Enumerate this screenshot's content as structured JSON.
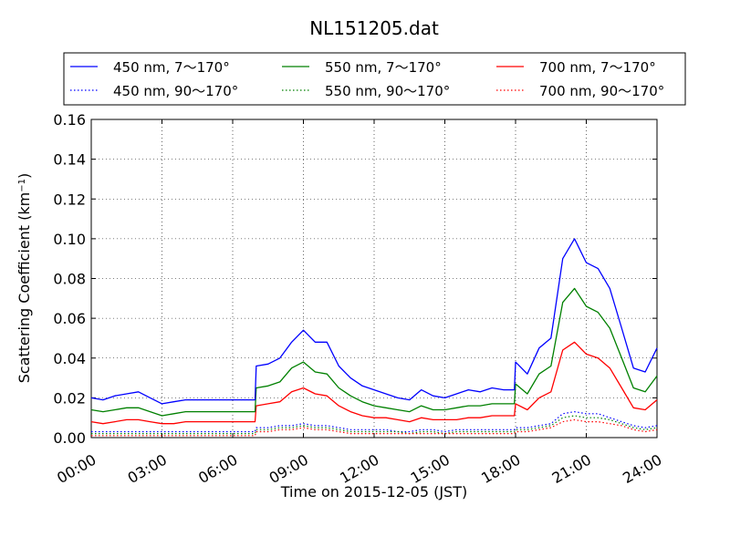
{
  "chart_data": {
    "type": "line",
    "title": "NL151205.dat",
    "xlabel": "Time on 2015-12-05 (JST)",
    "ylabel": "Scattering Coefficient (km",
    "ylabel_sup": "−1",
    "ylabel_tail": ")",
    "xlim": [
      0,
      24
    ],
    "ylim": [
      0,
      0.16
    ],
    "x_ticks": [
      0,
      3,
      6,
      9,
      12,
      15,
      18,
      21,
      24
    ],
    "x_tick_labels": [
      "00:00",
      "03:00",
      "06:00",
      "09:00",
      "12:00",
      "15:00",
      "18:00",
      "21:00",
      "24:00"
    ],
    "y_ticks": [
      0,
      0.02,
      0.04,
      0.06,
      0.08,
      0.1,
      0.12,
      0.14,
      0.16
    ],
    "y_tick_labels": [
      "0.00",
      "0.02",
      "0.04",
      "0.06",
      "0.08",
      "0.10",
      "0.12",
      "0.14",
      "0.16"
    ],
    "grid": true,
    "legend_placement": "top, above plot",
    "x": [
      0,
      0.5,
      1,
      1.5,
      2,
      2.5,
      3,
      3.5,
      4,
      4.5,
      5,
      5.5,
      6,
      6.5,
      6.95,
      7.0,
      7.5,
      8,
      8.5,
      9,
      9.5,
      10,
      10.5,
      11,
      11.5,
      12,
      12.5,
      13,
      13.5,
      14,
      14.5,
      15,
      15.5,
      16,
      16.5,
      17,
      17.5,
      17.95,
      18.0,
      18.5,
      19,
      19.5,
      20,
      20.5,
      21,
      21.5,
      22,
      22.5,
      23,
      23.5,
      24
    ],
    "series": [
      {
        "name": "450 nm, 7～170°",
        "color": "#0000ff",
        "style": "solid",
        "values": [
          0.02,
          0.019,
          0.021,
          0.022,
          0.023,
          0.02,
          0.017,
          0.018,
          0.019,
          0.019,
          0.019,
          0.019,
          0.019,
          0.019,
          0.019,
          0.036,
          0.037,
          0.04,
          0.048,
          0.054,
          0.048,
          0.048,
          0.036,
          0.03,
          0.026,
          0.024,
          0.022,
          0.02,
          0.019,
          0.024,
          0.021,
          0.02,
          0.022,
          0.024,
          0.023,
          0.025,
          0.024,
          0.024,
          0.038,
          0.032,
          0.045,
          0.05,
          0.09,
          0.1,
          0.088,
          0.085,
          0.075,
          0.055,
          0.035,
          0.033,
          0.045
        ]
      },
      {
        "name": "450 nm, 90～170°",
        "color": "#0000ff",
        "style": "dotted",
        "values": [
          0.003,
          0.003,
          0.003,
          0.003,
          0.003,
          0.003,
          0.003,
          0.003,
          0.003,
          0.003,
          0.003,
          0.003,
          0.003,
          0.003,
          0.003,
          0.005,
          0.005,
          0.006,
          0.006,
          0.007,
          0.006,
          0.006,
          0.005,
          0.004,
          0.004,
          0.004,
          0.004,
          0.003,
          0.003,
          0.004,
          0.004,
          0.003,
          0.004,
          0.004,
          0.004,
          0.004,
          0.004,
          0.004,
          0.005,
          0.005,
          0.006,
          0.007,
          0.012,
          0.013,
          0.012,
          0.012,
          0.01,
          0.008,
          0.006,
          0.005,
          0.006
        ]
      },
      {
        "name": "550 nm, 7～170°",
        "color": "#008000",
        "style": "solid",
        "values": [
          0.014,
          0.013,
          0.014,
          0.015,
          0.015,
          0.013,
          0.011,
          0.012,
          0.013,
          0.013,
          0.013,
          0.013,
          0.013,
          0.013,
          0.013,
          0.025,
          0.026,
          0.028,
          0.035,
          0.038,
          0.033,
          0.032,
          0.025,
          0.021,
          0.018,
          0.016,
          0.015,
          0.014,
          0.013,
          0.016,
          0.014,
          0.014,
          0.015,
          0.016,
          0.016,
          0.017,
          0.017,
          0.017,
          0.027,
          0.022,
          0.032,
          0.036,
          0.068,
          0.075,
          0.066,
          0.063,
          0.055,
          0.04,
          0.025,
          0.023,
          0.031
        ]
      },
      {
        "name": "550 nm, 90～170°",
        "color": "#008000",
        "style": "dotted",
        "values": [
          0.002,
          0.002,
          0.002,
          0.002,
          0.002,
          0.002,
          0.002,
          0.002,
          0.002,
          0.002,
          0.002,
          0.002,
          0.002,
          0.002,
          0.002,
          0.004,
          0.004,
          0.005,
          0.005,
          0.006,
          0.005,
          0.005,
          0.004,
          0.003,
          0.003,
          0.003,
          0.003,
          0.003,
          0.002,
          0.003,
          0.003,
          0.002,
          0.003,
          0.003,
          0.003,
          0.003,
          0.003,
          0.003,
          0.004,
          0.004,
          0.005,
          0.006,
          0.01,
          0.011,
          0.01,
          0.01,
          0.009,
          0.007,
          0.005,
          0.004,
          0.005
        ]
      },
      {
        "name": "700 nm, 7～170°",
        "color": "#ff0000",
        "style": "solid",
        "values": [
          0.008,
          0.007,
          0.008,
          0.009,
          0.009,
          0.008,
          0.007,
          0.007,
          0.008,
          0.008,
          0.008,
          0.008,
          0.008,
          0.008,
          0.008,
          0.016,
          0.017,
          0.018,
          0.023,
          0.025,
          0.022,
          0.021,
          0.016,
          0.013,
          0.011,
          0.01,
          0.01,
          0.009,
          0.008,
          0.01,
          0.009,
          0.009,
          0.009,
          0.01,
          0.01,
          0.011,
          0.011,
          0.011,
          0.017,
          0.014,
          0.02,
          0.023,
          0.044,
          0.048,
          0.042,
          0.04,
          0.035,
          0.025,
          0.015,
          0.014,
          0.019
        ]
      },
      {
        "name": "700 nm, 90～170°",
        "color": "#ff0000",
        "style": "dotted",
        "values": [
          0.001,
          0.001,
          0.001,
          0.001,
          0.001,
          0.001,
          0.001,
          0.001,
          0.001,
          0.001,
          0.001,
          0.001,
          0.001,
          0.001,
          0.001,
          0.003,
          0.003,
          0.004,
          0.004,
          0.005,
          0.004,
          0.004,
          0.003,
          0.002,
          0.002,
          0.002,
          0.002,
          0.002,
          0.002,
          0.002,
          0.002,
          0.002,
          0.002,
          0.002,
          0.002,
          0.002,
          0.002,
          0.002,
          0.003,
          0.003,
          0.004,
          0.005,
          0.008,
          0.009,
          0.008,
          0.008,
          0.007,
          0.006,
          0.004,
          0.003,
          0.004
        ]
      }
    ]
  }
}
